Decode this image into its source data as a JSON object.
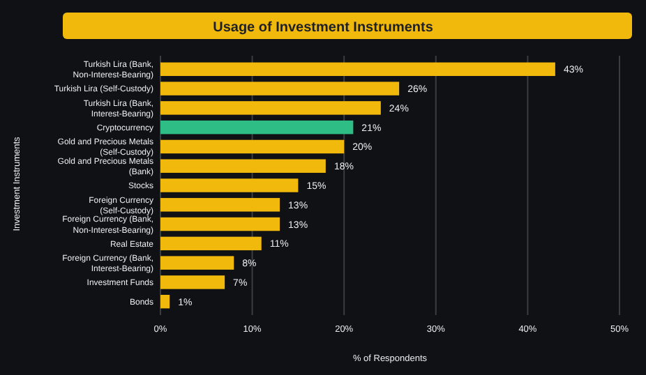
{
  "chart_data": {
    "type": "bar",
    "orientation": "horizontal",
    "title": "Usage of Investment Instruments",
    "xlabel": "% of Respondents",
    "ylabel": "Investment Instruments",
    "categories": [
      "Turkish Lira (Bank,\nNon-Interest-Bearing)",
      "Turkish Lira (Self-Custody)",
      "Turkish Lira (Bank,\nInterest-Bearing)",
      "Cryptocurrency",
      "Gold and Precious Metals\n(Self-Custody)",
      "Gold and Precious Metals\n(Bank)",
      "Stocks",
      "Foreign Currency\n(Self-Custody)",
      "Foreign Currency (Bank,\nNon-Interest-Bearing)",
      "Real Estate",
      "Foreign Currency (Bank,\nInterest-Bearing)",
      "Investment Funds",
      "Bonds"
    ],
    "values": [
      43,
      26,
      24,
      21,
      20,
      18,
      15,
      13,
      13,
      11,
      8,
      7,
      1
    ],
    "value_labels": [
      "43%",
      "26%",
      "24%",
      "21%",
      "20%",
      "18%",
      "15%",
      "13%",
      "13%",
      "11%",
      "8%",
      "7%",
      "1%"
    ],
    "colors": [
      "#f0b90b",
      "#f0b90b",
      "#f0b90b",
      "#2ebd85",
      "#f0b90b",
      "#f0b90b",
      "#f0b90b",
      "#f0b90b",
      "#f0b90b",
      "#f0b90b",
      "#f0b90b",
      "#f0b90b",
      "#f0b90b"
    ],
    "xlim": [
      0,
      50
    ],
    "xticks": [
      {
        "value": 0,
        "label": "0%"
      },
      {
        "value": 10,
        "label": "10%"
      },
      {
        "value": 20,
        "label": "20%"
      },
      {
        "value": 30,
        "label": "30%"
      },
      {
        "value": 40,
        "label": "40%"
      },
      {
        "value": 50,
        "label": "50%"
      }
    ],
    "grid": "x"
  }
}
